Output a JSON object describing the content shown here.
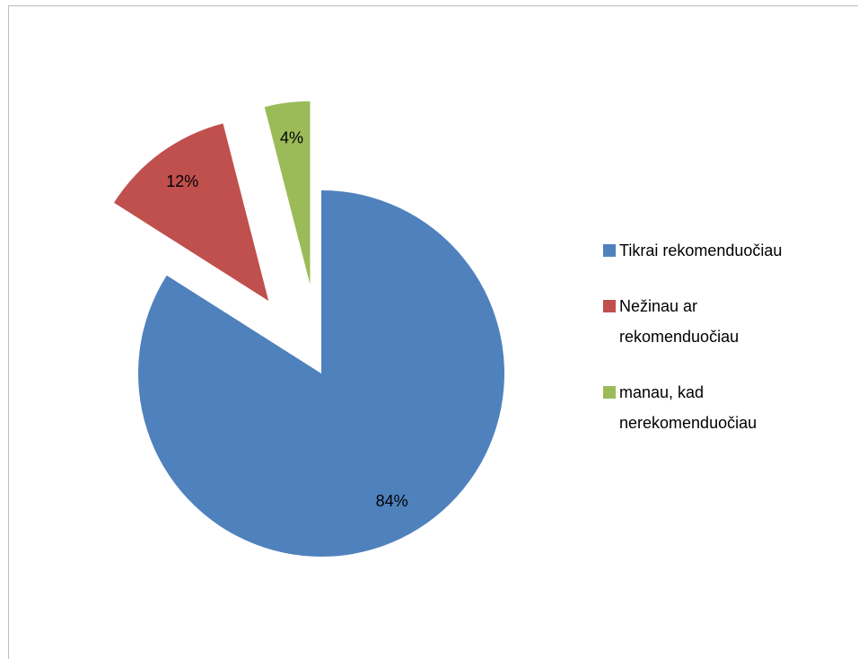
{
  "chart_data": {
    "type": "pie",
    "categories": [
      "Tikrai rekomenduočiau",
      "Nežinau ar rekomenduočiau",
      "manau, kad nerekomenduočiau"
    ],
    "values": [
      84,
      12,
      4
    ],
    "value_labels": [
      "84%",
      "12%",
      "4%"
    ],
    "colors": [
      "#4f81bd",
      "#c0504d",
      "#9bbb59"
    ],
    "exploded": [
      false,
      true,
      true
    ],
    "legend": "right"
  }
}
